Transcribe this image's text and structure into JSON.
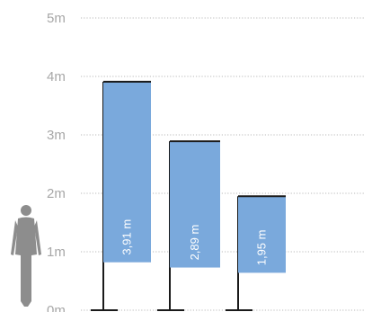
{
  "chart_data": {
    "type": "bar",
    "title": "",
    "xlabel": "",
    "ylabel": "",
    "ylim": [
      0,
      5
    ],
    "y_ticks": [
      {
        "value": 0,
        "label": "0m"
      },
      {
        "value": 1,
        "label": "1m"
      },
      {
        "value": 2,
        "label": "2m"
      },
      {
        "value": 3,
        "label": "3m"
      },
      {
        "value": 4,
        "label": "4m"
      },
      {
        "value": 5,
        "label": "5m"
      }
    ],
    "grid": "dotted horizontal",
    "series": [
      {
        "values": [
          3.91,
          2.89,
          1.95
        ],
        "labels": [
          "3,91 m",
          "2,89 m",
          "1,95 m"
        ],
        "banner_bottom": [
          0.82,
          0.73,
          0.64
        ]
      }
    ],
    "colors": {
      "banner": "#7aa9dc",
      "pole": "#1a1a1a",
      "grid": "#b8b8b8",
      "tick_text": "#a7a7a7",
      "person": "#8d8d8d"
    },
    "icons": [
      "person-silhouette-icon"
    ]
  }
}
